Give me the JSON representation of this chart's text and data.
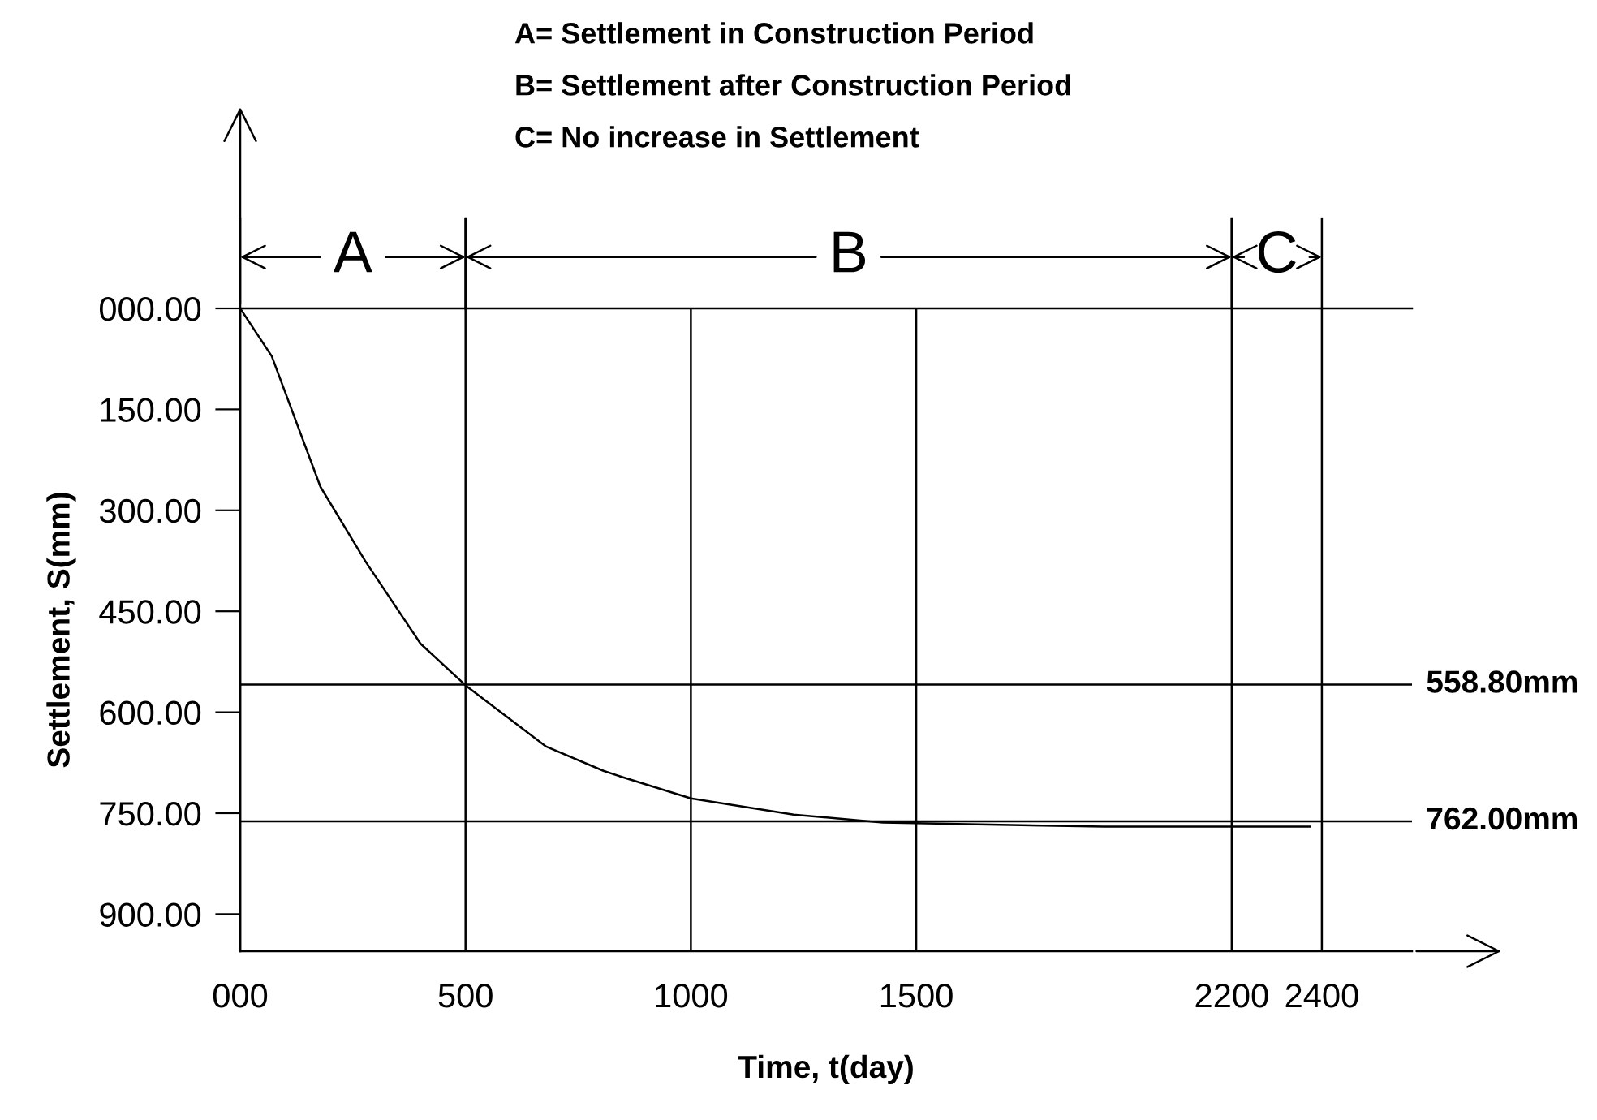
{
  "chart_data": {
    "type": "line",
    "xlabel": "Time, t(day)",
    "ylabel": "Settlement, S(mm)",
    "annotations": [
      "A= Settlement in Construction Period",
      "B= Settlement after Construction Period",
      "C= No increase in Settlement",
      "A",
      "B",
      "C"
    ],
    "series": [
      {
        "color": "#000000",
        "x": [
          0,
          70,
          178,
          279,
          400,
          500,
          679,
          806,
          851,
          1000,
          1228,
          1426,
          1916,
          2374
        ],
        "values": [
          0,
          71,
          265,
          377,
          498,
          560,
          651,
          687,
          697,
          728,
          752,
          764,
          770,
          770
        ]
      }
    ],
    "xlim": [
      0,
      2600
    ],
    "ylim": [
      955,
      0
    ],
    "xticks": [
      {
        "value": 0,
        "label": "000"
      },
      500,
      1000,
      1500,
      2200,
      2400
    ],
    "yticks": [
      {
        "value": 0,
        "label": "000.00"
      },
      {
        "value": 150,
        "label": "150.00"
      },
      {
        "value": 300,
        "label": "300.00"
      },
      {
        "value": 450,
        "label": "450.00"
      },
      {
        "value": 600,
        "label": "600.00"
      },
      {
        "value": 750,
        "label": "750.00"
      },
      {
        "value": 900,
        "label": "900.00"
      }
    ],
    "grid": "x",
    "marker": "none",
    "line_style": "solid",
    "ref_lines": [
      {
        "axis": "y",
        "value": 558.8,
        "label": "558.80mm"
      },
      {
        "axis": "y",
        "value": 762,
        "label": "762.00mm"
      }
    ]
  }
}
